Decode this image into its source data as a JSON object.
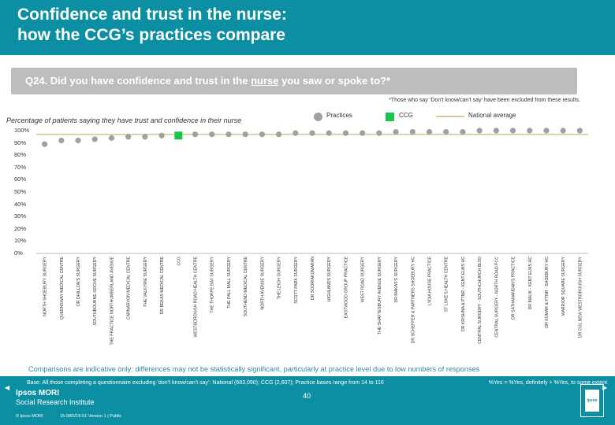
{
  "header": {
    "title": "Confidence and trust in the nurse:\nhow the CCG’s practices compare"
  },
  "question": {
    "prefix": "Q24. Did you have confidence and trust in the ",
    "emphasis": "nurse",
    "suffix": " you saw or spoke to?*"
  },
  "footnote_top": "*Those who say ‘Don’t know/can’t say’ have been excluded from these results.",
  "subtitle": "Percentage of patients saying they have trust and confidence in their nurse",
  "legend": {
    "practices": "Practices",
    "ccg": "CCG",
    "national": "National average"
  },
  "disclaimer": "Comparisons are indicative only: differences may not be statistically significant, particularly at practice level due to low numbers of responses",
  "footer": {
    "base": "Base: All those completing a questionnaire excluding ‘don’t know/can’t say’: National (683,090); CCG (2,607); Practice bases range from 14 to 116",
    "yes_def": "%Yes = %Yes, definitely + %Yes, to some extent",
    "page_number": "40",
    "brand": "Ipsos MORI",
    "brand_sub": "Social Research Institute",
    "copyright": "© Ipsos MORI",
    "job": "15-080216-01 Version 1 | Public",
    "logo": "Ipsos"
  },
  "colors": {
    "header": "#0d8fa3",
    "practice": "#a0a0a0",
    "ccg": "#19c44a",
    "national": "#d6c89a",
    "disclaimer": "#2e8fa0"
  },
  "chart_data": {
    "type": "scatter",
    "title": "Percentage of patients saying they have trust and confidence in their nurse",
    "ylabel": "",
    "ylim": [
      0,
      100
    ],
    "yticks": [
      "0%",
      "10%",
      "20%",
      "30%",
      "40%",
      "50%",
      "60%",
      "70%",
      "80%",
      "90%",
      "100%"
    ],
    "national_average": 97,
    "categories": [
      "NORTH SHOEBURY SURGERY",
      "QUEENSWAY MEDICAL CENTRE",
      "DR DHILLON'S SURGERY",
      "SOUTHBOURNE GROVE SURGERY",
      "THE PRACTICE NORTHUMBERLAND AVENUE",
      "CARNARVON MEDICAL CENTRE",
      "THE VALKYRIE SURGERY",
      "DR BEKAS MEDICAL CENTRE",
      "CCG",
      "WESTBOROUGH ROAD HEALTH CENTRE",
      "THE THORPE BAY SURGERY",
      "THE PALL MALL SURGERY",
      "SOUTHEND MEDICAL CENTRE",
      "NORTH AVENUE SURGERY",
      "THE LEIGH SURGERY",
      "SCOTT PARK SURGERY",
      "DR SOORIAKUMARAN",
      "HIGHLANDS SURGERY",
      "EASTWOOD GROUP PRACTICE",
      "WEST ROAD SURGERY",
      "THE SHAFTESBURY AVENUE SURGERY",
      "DR MAKAS'S SURGERY",
      "DR SCHEFFER & PARTNERS SHOEBURY HC",
      "LYDIA HOUSE PRACTICE",
      "ST LUKE'S HEALTH CENTRE",
      "DR KRISHNA & PTNR - KENT ELMS HC",
      "CENTRAL SURGERY - SOUTHCHURCH BLVD",
      "CENTRAL SURGERY - NORTH ROAD PCC",
      "DR SATHANANDAN'S PRACTICE",
      "DR MALIK - KENT ELMS HC",
      "DR KUMAR & PTNR - SHOEBURY HC",
      "WARRIOR SQUARE SURGERY",
      "DR GUL NEW WESTBOROUGH SURGERY"
    ],
    "values": [
      89,
      92,
      92,
      93,
      94,
      95,
      95,
      96,
      96,
      97,
      97,
      97,
      97,
      97,
      97,
      98,
      98,
      98,
      98,
      98,
      98,
      99,
      99,
      99,
      99,
      99,
      100,
      100,
      100,
      100,
      100,
      100,
      100
    ],
    "ccg_index": 8
  }
}
